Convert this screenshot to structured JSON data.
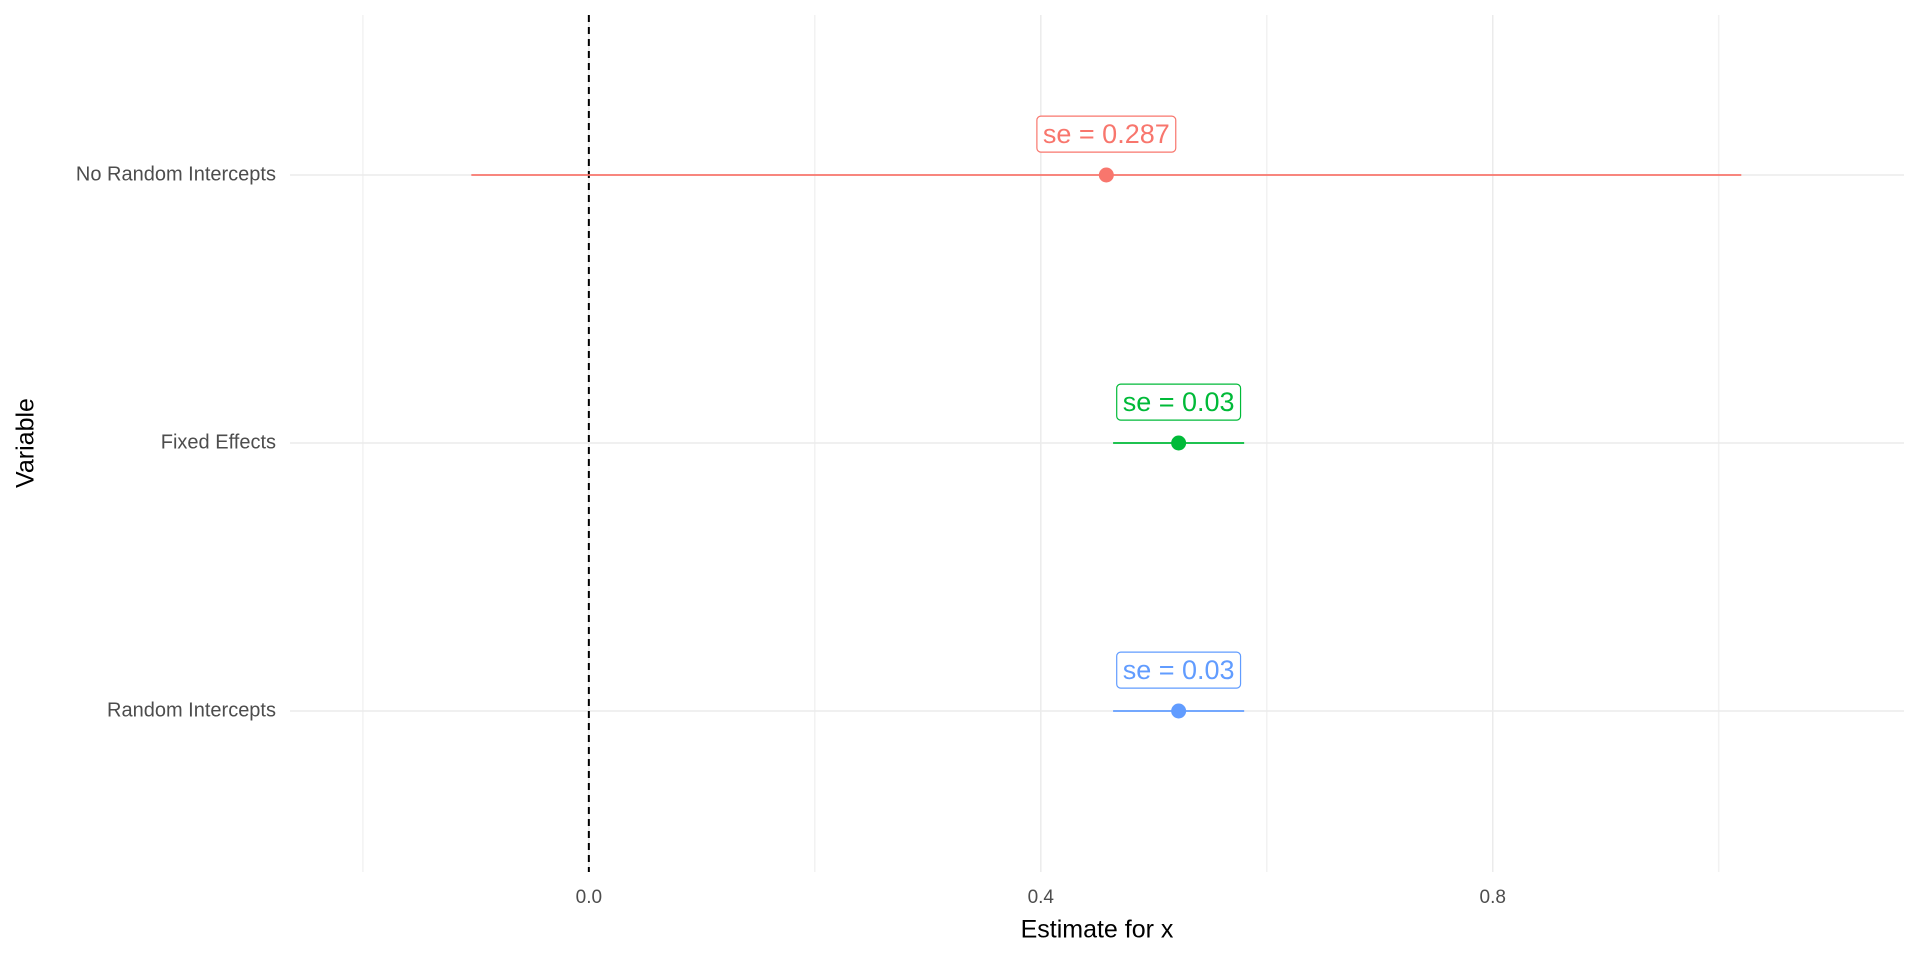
{
  "chart_data": {
    "type": "errorbar",
    "x_label": "Estimate for x",
    "y_label": "Variable",
    "categories": [
      "No Random Intercepts",
      "Fixed Effects",
      "Random Intercepts"
    ],
    "values": [
      0.458,
      0.522,
      0.522
    ],
    "lower": [
      -0.104,
      0.464,
      0.464
    ],
    "upper": [
      1.02,
      0.58,
      0.58
    ],
    "se": [
      0.287,
      0.03,
      0.03
    ],
    "se_labels": [
      "se = 0.287",
      "se = 0.03",
      "se = 0.03"
    ],
    "colors": [
      "#F8766D",
      "#00BA38",
      "#619CFF"
    ],
    "xlim": [
      -0.2645,
      1.164
    ],
    "xticks": [
      {
        "value": 0,
        "label": "0.0"
      },
      0.4,
      0.8
    ],
    "xminor": [
      -0.2,
      0.2,
      0.6,
      1.0
    ],
    "reference_line": 0,
    "grid": true
  }
}
